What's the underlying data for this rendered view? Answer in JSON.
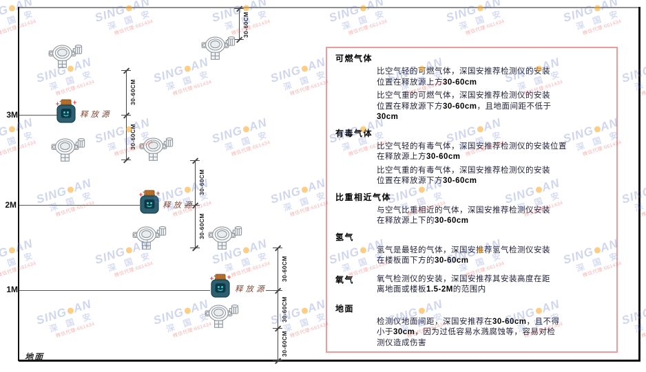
{
  "watermark": {
    "brand_left": "SING",
    "brand_right": "AN",
    "cjk": "深 国 安",
    "agent": "微信代理:661434"
  },
  "diagram": {
    "axis": {
      "m3": "3M",
      "m2": "2M",
      "m1": "1M",
      "ground": "地面"
    },
    "release_source_label": "释放源",
    "dim_label": "30-60CM"
  },
  "panel": {
    "sections": [
      {
        "heading": "可燃气体",
        "inline": false,
        "paragraphs": [
          [
            "比空气轻的可燃气体，深国安推荐检测仪的安装",
            "位置在释放源上方30-60cm"
          ],
          [
            "比空气重的可燃气体，深国安推荐检测仪的安装",
            "位置在释放源下方30-60cm，且地面间距不低于",
            "30cm"
          ]
        ]
      },
      {
        "heading": "有毒气体",
        "inline": false,
        "paragraphs": [
          [
            "比空气轻的有毒气体，深国安推荐检测仪的安装位置",
            "在释放源上方30-60cm"
          ],
          [
            "比空气重的有毒气体，深国安推荐检测仪的安装",
            "位置在释放源下方30-60cm"
          ]
        ]
      },
      {
        "heading": "比重相近气体",
        "inline": false,
        "paragraphs": [
          [
            "与空气比重相近的气体，深国安推荐检测仪安装",
            "在释放源上下的30-60cm"
          ]
        ]
      },
      {
        "heading": "氢气",
        "inline": false,
        "paragraphs": [
          [
            "氢气是最轻的气体，深国安推荐氢气检测仪安装",
            "在楼板面下方的30-60cm"
          ]
        ]
      },
      {
        "heading": "氧气",
        "inline": true,
        "paragraphs": [
          [
            "氧气检测仪的安装，深国安推荐其安装高度在距",
            "离地面或楼板1.5-2M的范围内"
          ]
        ]
      },
      {
        "heading": "地面",
        "inline": false,
        "paragraphs": [
          [
            "检测仪地面间距，深国安推荐在30-60cm，且不得",
            "小于30cm，因为过低容易水溅腐蚀等，容易对检",
            "测仪造成伤害"
          ]
        ]
      }
    ]
  }
}
